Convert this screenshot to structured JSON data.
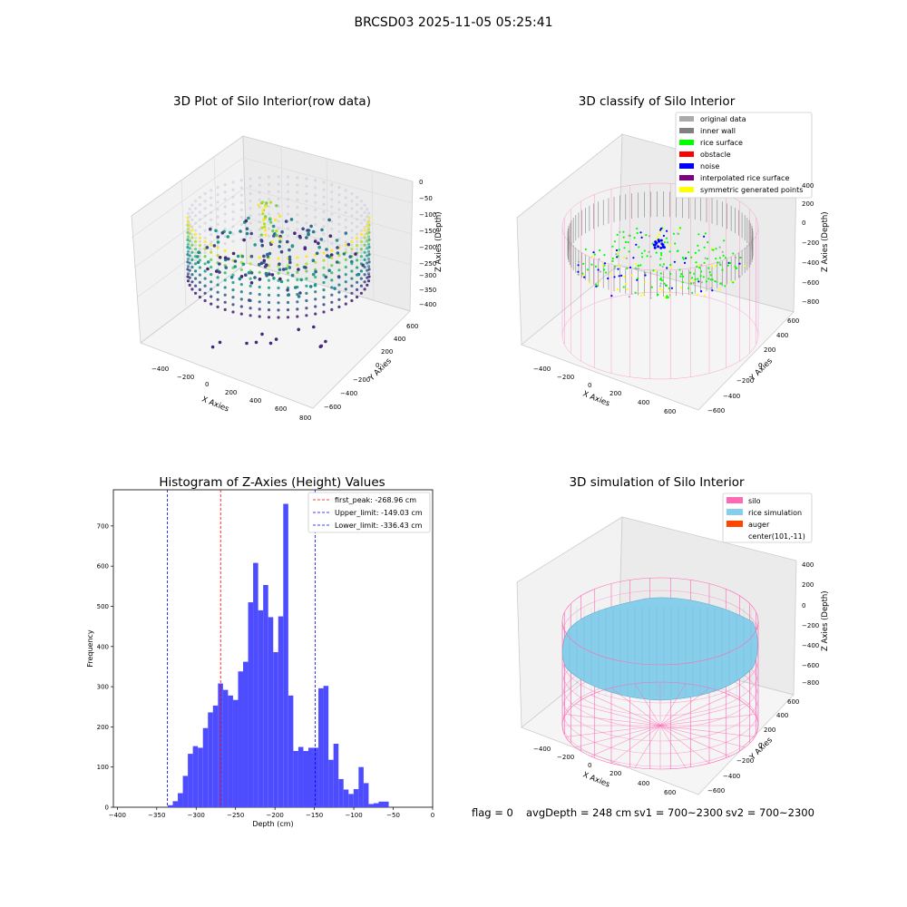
{
  "figure": {
    "suptitle": "BRCSD03 2025-11-05 05:25:41",
    "footer": {
      "flag": "flag = 0",
      "avg_depth": "avgDepth = 248 cm",
      "sv1": "sv1 = 700~2300",
      "sv2": "sv2 = 700~2300"
    }
  },
  "colors": {
    "histogram": "#4d4dff",
    "peak_line": "#ff0000",
    "limit_line": "#0000ff",
    "silo": "#ff69b4",
    "rice": "#87ceeb",
    "auger": "#ff4500",
    "gray": "#aaaaaa"
  },
  "chart_data": [
    {
      "type": "scatter3d",
      "title": "3D Plot of Silo Interior(row data)",
      "xlabel": "X Axies",
      "ylabel": "Y Axies",
      "zlabel": "Z Axies (Depth)",
      "x_ticks": [
        "−400",
        "−200",
        "0",
        "200",
        "400",
        "600",
        "800"
      ],
      "y_ticks": [
        "−600",
        "−400",
        "−200",
        "0",
        "200",
        "400",
        "600"
      ],
      "z_ticks": [
        "0",
        "−50",
        "−100",
        "−150",
        "−200",
        "−250",
        "−300",
        "−350",
        "−400"
      ],
      "zlim": [
        -400,
        0
      ],
      "colormap": "viridis"
    },
    {
      "type": "scatter3d",
      "title": "3D classify of Silo Interior",
      "xlabel": "X Axies",
      "ylabel": "Y Axies",
      "zlabel": "Z Axies (Depth)",
      "x_ticks": [
        "−400",
        "−200",
        "0",
        "200",
        "400",
        "600"
      ],
      "y_ticks": [
        "−600",
        "−400",
        "−200",
        "0",
        "200",
        "400",
        "600"
      ],
      "z_ticks": [
        "400",
        "200",
        "0",
        "−200",
        "−400",
        "−600",
        "−800"
      ],
      "legend_position": "top-right",
      "legend": [
        {
          "label": "original data",
          "color": "#aaaaaa"
        },
        {
          "label": "inner wall",
          "color": "#808080"
        },
        {
          "label": "rice surface",
          "color": "#00ff00"
        },
        {
          "label": "obstacle",
          "color": "#ff0000"
        },
        {
          "label": "noise",
          "color": "#0000ff"
        },
        {
          "label": "interpolated rice surface",
          "color": "#800080"
        },
        {
          "label": "symmetric generated points",
          "color": "#ffff00"
        }
      ]
    },
    {
      "type": "bar",
      "title": "Histogram of Z-Axies (Height) Values",
      "xlabel": "Depth (cm)",
      "ylabel": "Frequency",
      "xlim": [
        -405,
        0
      ],
      "ylim": [
        0,
        790
      ],
      "x_ticks": [
        -400,
        -350,
        -300,
        -250,
        -200,
        -150,
        -100,
        -50,
        0
      ],
      "y_ticks": [
        0,
        100,
        200,
        300,
        400,
        500,
        600,
        700
      ],
      "bin_start": -336,
      "bin_width": 6.37,
      "values": [
        5,
        15,
        35,
        78,
        133,
        152,
        148,
        197,
        236,
        253,
        308,
        292,
        278,
        267,
        338,
        362,
        510,
        608,
        490,
        553,
        473,
        386,
        475,
        755,
        278,
        140,
        150,
        140,
        148,
        148,
        296,
        302,
        118,
        158,
        70,
        44,
        33,
        45,
        100,
        60,
        8,
        10,
        14,
        14
      ],
      "vlines": [
        {
          "label": "first_peak: -268.96 cm",
          "x": -268.96,
          "color": "#ff0000"
        },
        {
          "label": "Upper_limit: -149.03 cm",
          "x": -149.03,
          "color": "#0000ff"
        },
        {
          "label": "Lower_limit: -336.43 cm",
          "x": -336.43,
          "color": "#0000ff"
        }
      ],
      "legend_position": "top-right"
    },
    {
      "type": "surface3d",
      "title": "3D simulation of Silo Interior",
      "xlabel": "X Axies",
      "ylabel": "Y Axies",
      "zlabel": "Z Axies (Depth)",
      "x_ticks": [
        "−400",
        "−200",
        "0",
        "200",
        "400",
        "600"
      ],
      "y_ticks": [
        "−600",
        "−400",
        "−200",
        "0",
        "200",
        "400",
        "600"
      ],
      "z_ticks": [
        "400",
        "200",
        "0",
        "−200",
        "−400",
        "−600",
        "−800"
      ],
      "legend_position": "top-right",
      "legend": [
        {
          "label": "silo",
          "color": "#ff69b4"
        },
        {
          "label": "rice simulation",
          "color": "#87ceeb"
        },
        {
          "label": "auger",
          "color": "#ff4500"
        },
        {
          "label": "center(101,-11)",
          "color": ""
        }
      ]
    }
  ]
}
